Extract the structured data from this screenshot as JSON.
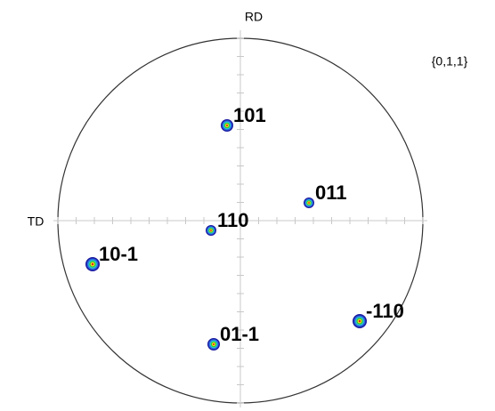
{
  "axes": {
    "top": "RD",
    "left": "TD"
  },
  "family": "{0,1,1}",
  "poles": [
    {
      "label": "101"
    },
    {
      "label": "011"
    },
    {
      "label": "110"
    },
    {
      "label": "10-1"
    },
    {
      "label": "01-1"
    },
    {
      "label": "-110"
    }
  ]
}
